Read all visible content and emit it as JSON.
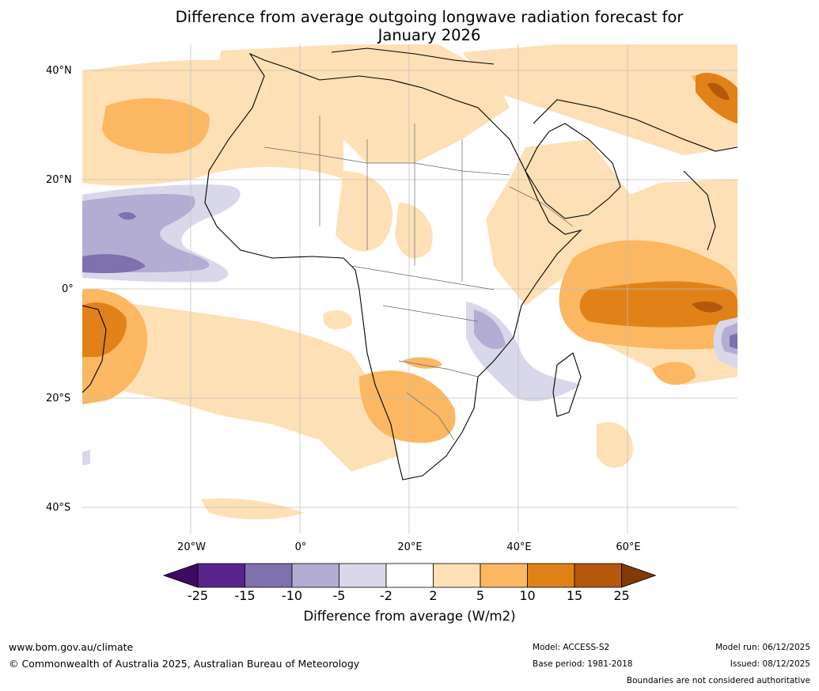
{
  "title": {
    "line1": "Difference from average outgoing longwave radiation forecast for",
    "line2": "January 2026"
  },
  "map": {
    "region": "Africa",
    "lat_labels": [
      "40°N",
      "20°N",
      "0°",
      "20°S",
      "40°S"
    ],
    "lon_labels": [
      "20°W",
      "0°",
      "20°E",
      "40°E",
      "60°E"
    ]
  },
  "colorbar": {
    "ticks": [
      "-25",
      "-15",
      "-10",
      "-5",
      "-2",
      "2",
      "5",
      "10",
      "15",
      "25"
    ],
    "colors": [
      "#3f0b61",
      "#58248c",
      "#7f70ae",
      "#b3acd3",
      "#d9d8ea",
      "#ffffff",
      "#fde0b5",
      "#fbb762",
      "#e08218",
      "#b4580b",
      "#7f3b08"
    ],
    "label": "Difference from average (W/m2)"
  },
  "footer": {
    "url": "www.bom.gov.au/climate",
    "copyright": "© Commonwealth of Australia 2025, Australian Bureau of Meteorology",
    "model": "Model: ACCESS-S2",
    "base_period": "Base period: 1981-2018",
    "model_run": "Model run: 06/12/2025",
    "issued": "Issued: 08/12/2025",
    "disclaimer": "Boundaries are not considered authoritative"
  }
}
